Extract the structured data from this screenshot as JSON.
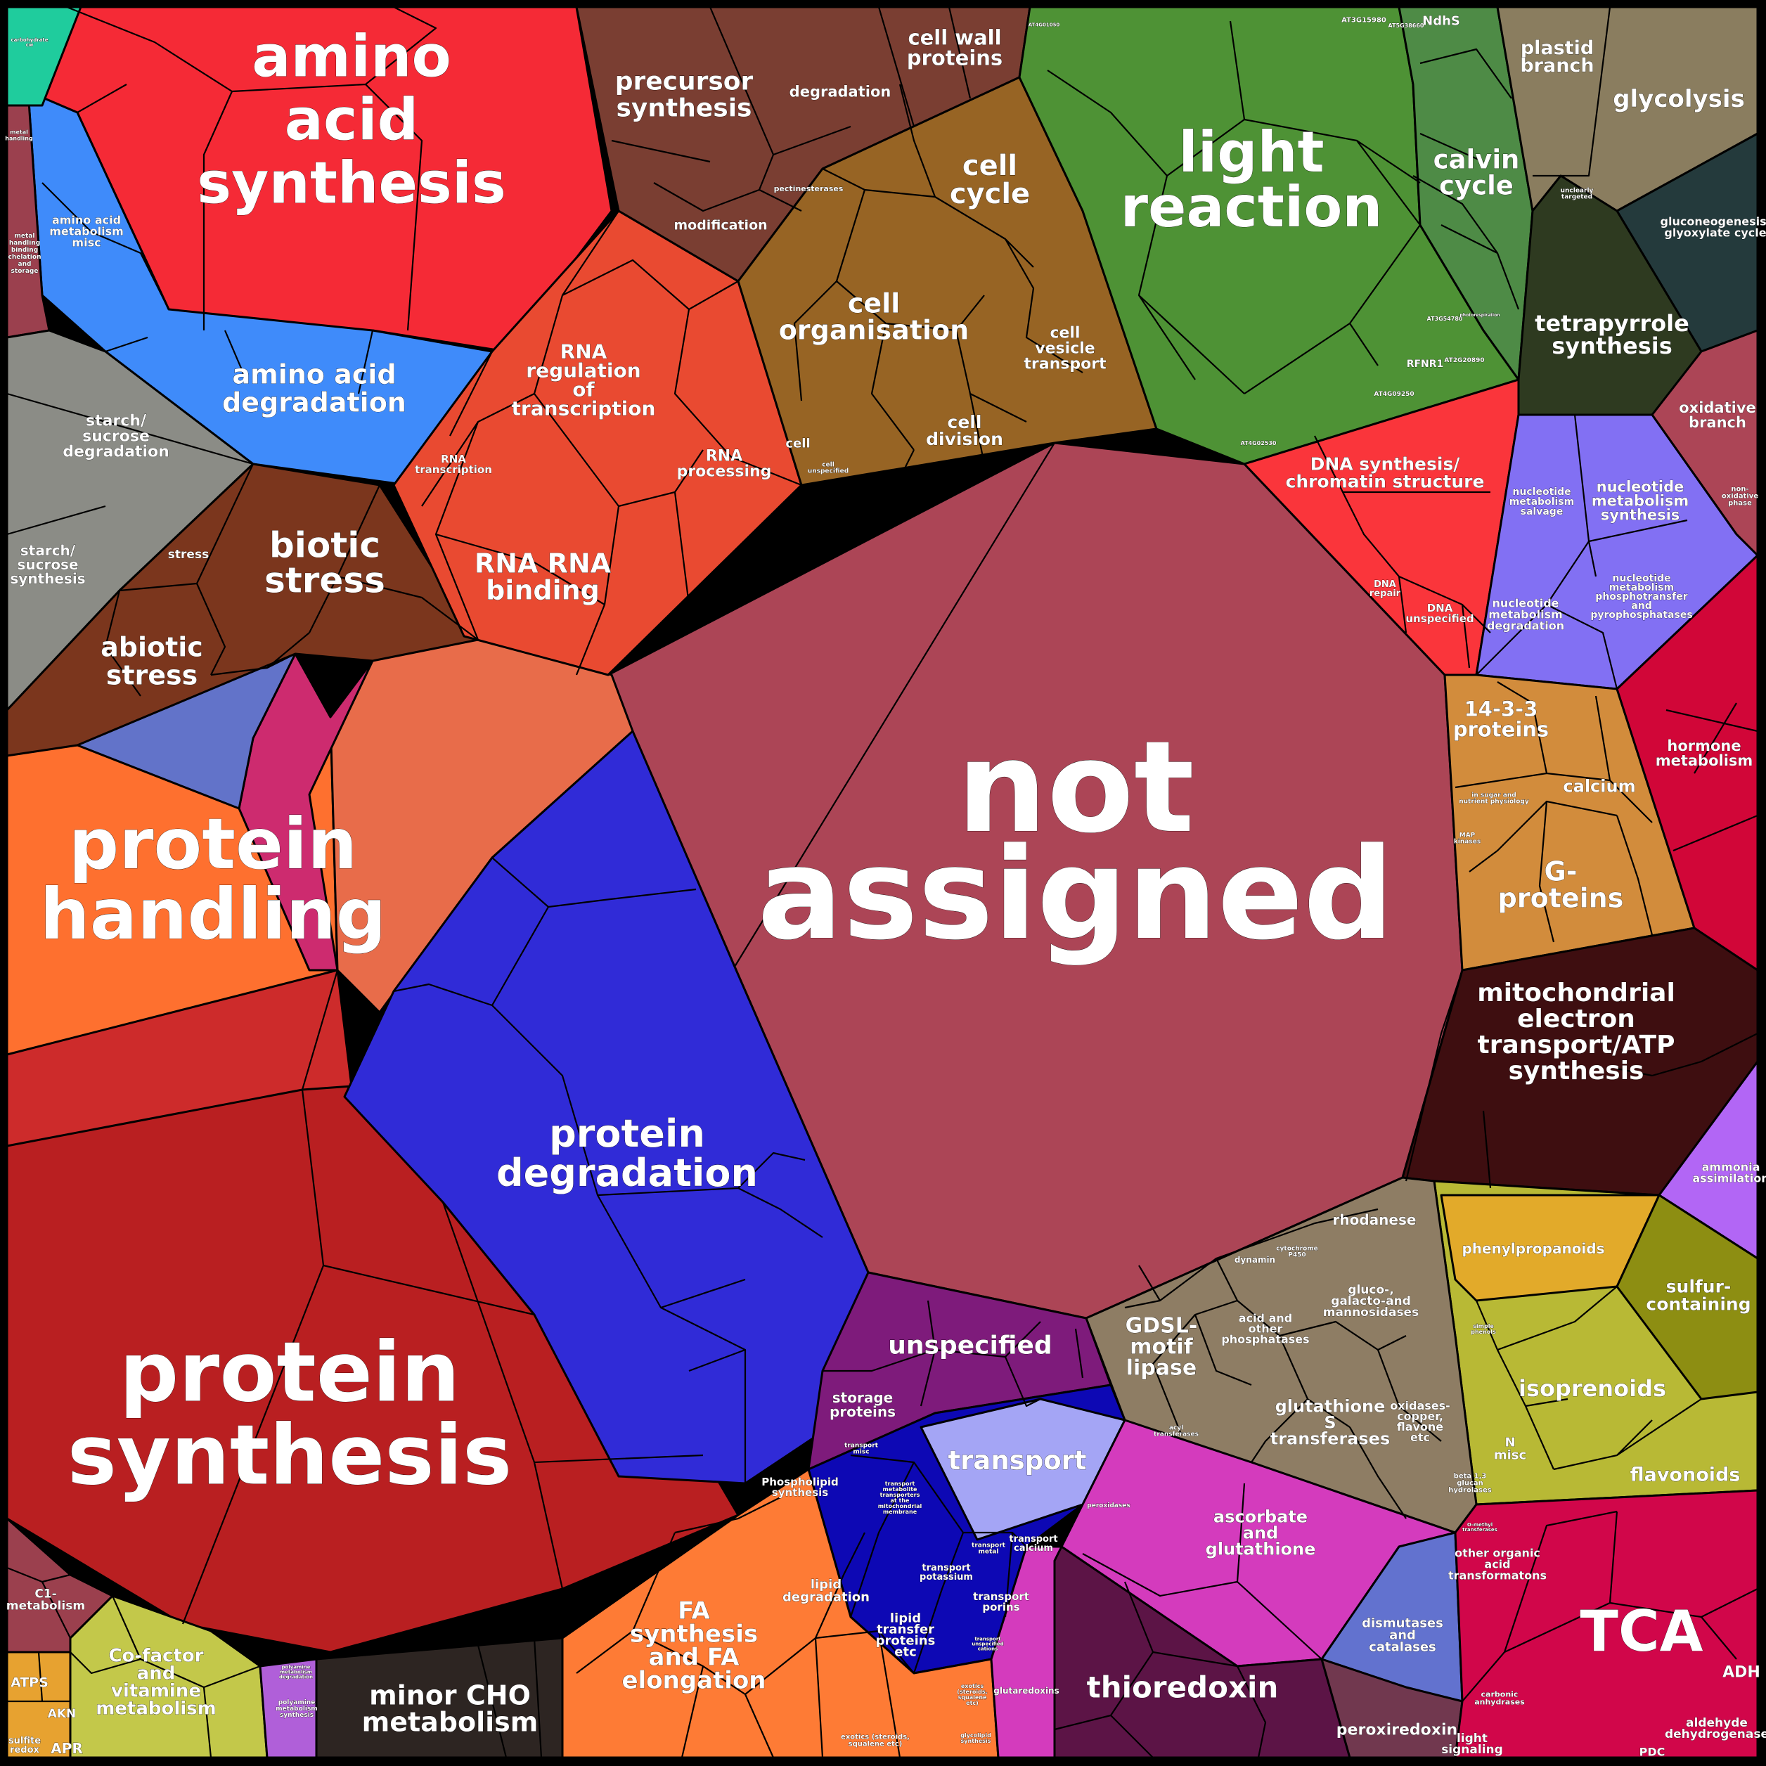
{
  "labels": {
    "not_assigned": [
      "not",
      "assigned"
    ],
    "protein_synthesis": [
      "protein",
      "synthesis"
    ],
    "protein_handling": [
      "protein",
      "handling"
    ],
    "protein_degradation": [
      "protein",
      "degradation"
    ],
    "amino_acid_synthesis": [
      "amino",
      "acid",
      "synthesis"
    ],
    "amino_acid_degradation": [
      "amino acid",
      "degradation"
    ],
    "amino_acid_metabolism_misc": [
      "amino acid",
      "metabolism",
      "misc"
    ],
    "metal_handling": [
      "metal",
      "handling",
      "binding",
      "chelation",
      "and",
      "storage"
    ],
    "metal_handling_top": [
      "metal",
      "handling"
    ],
    "starch_degradation": [
      "starch/",
      "sucrose",
      "degradation"
    ],
    "starch_synthesis": [
      "starch/",
      "sucrose",
      "synthesis"
    ],
    "biotic_stress": [
      "biotic",
      "stress"
    ],
    "stress": [
      "stress"
    ],
    "abiotic_stress": [
      "abiotic",
      "stress"
    ],
    "rna_regulation": [
      "RNA",
      "regulation",
      "of",
      "transcription"
    ],
    "rna_transcription": [
      "RNA",
      "transcription"
    ],
    "rna_processing": [
      "RNA",
      "processing"
    ],
    "rna_binding": [
      "RNA RNA",
      "binding"
    ],
    "precursor_synthesis": [
      "precursor",
      "synthesis"
    ],
    "degradation": [
      "degradation"
    ],
    "cell_wall_proteins": [
      "cell wall",
      "proteins"
    ],
    "pectinesterases": [
      "pectinesterases"
    ],
    "modification": [
      "modification"
    ],
    "cell_cycle": [
      "cell",
      "cycle"
    ],
    "cell_organisation": [
      "cell",
      "organisation"
    ],
    "cell_vesicle_transport": [
      "cell",
      "vesicle",
      "transport"
    ],
    "cell_division": [
      "cell",
      "division"
    ],
    "cell": [
      "cell"
    ],
    "cell_unspecified": [
      "cell",
      "unspecified"
    ],
    "light_reaction": [
      "light",
      "reaction"
    ],
    "calvin_cycle": [
      "calvin",
      "cycle"
    ],
    "plastid_branch": [
      "plastid",
      "branch"
    ],
    "glycolysis": [
      "glycolysis"
    ],
    "unclear_targeted": [
      "unclearly",
      "targeted"
    ],
    "gluconeogenesis": [
      "gluconeogenesis/",
      "glyoxylate cycle"
    ],
    "tetrapyrrole_synthesis": [
      "tetrapyrrole",
      "synthesis"
    ],
    "oxidative_branch": [
      "oxidative",
      "branch"
    ],
    "non_oxidative_phase": [
      "non-",
      "oxidative",
      "phase"
    ],
    "dna_synthesis": [
      "DNA synthesis/",
      "chromatin structure"
    ],
    "dna_repair": [
      "DNA",
      "repair"
    ],
    "dna_unspecified": [
      "DNA",
      "unspecified"
    ],
    "nucleotide_salvage": [
      "nucleotide",
      "metabolism",
      "salvage"
    ],
    "nucleotide_synthesis": [
      "nucleotide",
      "metabolism",
      "synthesis"
    ],
    "nucleotide_degradation": [
      "nucleotide",
      "metabolism",
      "degradation"
    ],
    "nucleotide_phosphotransfer": [
      "nucleotide",
      "metabolism",
      "phosphotransfer",
      "and",
      "pyrophosphatases"
    ],
    "proteins_1433": [
      "14-3-3",
      "proteins"
    ],
    "calcium": [
      "calcium"
    ],
    "sugar_nutrient": [
      "in sugar and",
      "nutrient physiology"
    ],
    "map_kinases": [
      "MAP",
      "kinases"
    ],
    "g_proteins": [
      "G-",
      "proteins"
    ],
    "hormone_metabolism": [
      "hormone",
      "metabolism"
    ],
    "mitochondrial_electron": [
      "mitochondrial",
      "electron",
      "transport/ATP",
      "synthesis"
    ],
    "ammonia_assimilation": [
      "ammonia",
      "assimilation"
    ],
    "phenylpropanoids": [
      "phenylpropanoids"
    ],
    "sulfur_containing": [
      "sulfur-",
      "containing"
    ],
    "isoprenoids": [
      "isoprenoids"
    ],
    "simple_phenols": [
      "simple",
      "phenols"
    ],
    "n_misc": [
      "N",
      "misc"
    ],
    "flavonoids": [
      "flavonoids"
    ],
    "rhodanese": [
      "rhodanese"
    ],
    "gluco_galacto": [
      "gluco-,",
      "galacto-and",
      "mannosidases"
    ],
    "acid_phosphatases": [
      "acid and",
      "other",
      "phosphatases"
    ],
    "dynamin": [
      "dynamin"
    ],
    "cytochrome_p450": [
      "cytochrome",
      "P450"
    ],
    "gdsl_lipase": [
      "GDSL-",
      "motif",
      "lipase"
    ],
    "glutathione_transferases": [
      "glutathione",
      "S",
      "transferases"
    ],
    "oxidases": [
      "oxidases-",
      "copper,",
      "flavone",
      "etc"
    ],
    "beta_glucan": [
      "beta 1,3",
      "glucan",
      "hydrolases"
    ],
    "o_methyl": [
      "O-methyl",
      "transferases"
    ],
    "acyl_transferases": [
      "acyl",
      "transferases"
    ],
    "peroxidases": [
      "peroxidases"
    ],
    "unspecified": [
      "unspecified"
    ],
    "storage_proteins": [
      "storage",
      "proteins"
    ],
    "transport": [
      "transport"
    ],
    "transport_misc": [
      "transport",
      "misc"
    ],
    "transport_mito": [
      "transport",
      "metabolite",
      "transporters",
      "at the",
      "mitochondrial",
      "membrane"
    ],
    "transport_metal": [
      "transport",
      "metal"
    ],
    "transport_calcium": [
      "transport",
      "calcium"
    ],
    "transport_potassium": [
      "transport",
      "potassium"
    ],
    "transport_porins": [
      "transport",
      "porins"
    ],
    "transport_unspecified_cations": [
      "transport",
      "unspecified",
      "cations"
    ],
    "phospholipid_synthesis": [
      "Phospholipid",
      "synthesis"
    ],
    "lipid_degradation": [
      "lipid",
      "degradation"
    ],
    "lipid_transfer": [
      "lipid",
      "transfer",
      "proteins",
      "etc"
    ],
    "fa_synthesis": [
      "FA",
      "synthesis",
      "and FA",
      "elongation"
    ],
    "exotics_steroids": [
      "exotics (steroids,",
      "squalene etc)"
    ],
    "exotics": [
      "exotics",
      "(steroids,",
      "squalene",
      "etc)"
    ],
    "glycolipid_synthesis": [
      "glycolipid",
      "synthesis"
    ],
    "ascorbate_glutathione": [
      "ascorbate",
      "and",
      "glutathione"
    ],
    "glutaredoxins": [
      "glutaredoxins"
    ],
    "thioredoxin": [
      "thioredoxin"
    ],
    "dismutases_catalases": [
      "dismutases",
      "and",
      "catalases"
    ],
    "peroxiredoxin": [
      "peroxiredoxin"
    ],
    "other_organic_acid": [
      "other organic",
      "acid",
      "transformatons"
    ],
    "tca": [
      "TCA"
    ],
    "adh": [
      "ADH"
    ],
    "pdc": [
      "PDC"
    ],
    "aldehyde_dehydrogenase": [
      "aldehyde",
      "dehydrogenase"
    ],
    "carbonic_anhydrases": [
      "carbonic",
      "anhydrases"
    ],
    "light_signaling": [
      "light",
      "signaling"
    ],
    "minor_cho": [
      "minor CHO",
      "metabolism"
    ],
    "cofactor": [
      "Co-factor",
      "and",
      "vitamine",
      "metabolism"
    ],
    "polyamine_degradation": [
      "polyamine",
      "metabolism",
      "degradation"
    ],
    "polyamine_synthesis": [
      "polyamine",
      "metabolism",
      "synthesis"
    ],
    "c1_metabolism": [
      "C1-",
      "metabolism"
    ],
    "atps": [
      "ATPS"
    ],
    "akn": [
      "AKN"
    ],
    "apr": [
      "APR"
    ],
    "sulfite_redox": [
      "sulfite",
      "redox"
    ],
    "ndhs": [
      "NdhS"
    ],
    "at3g15980": [
      "AT3G15980"
    ],
    "at5g38660": [
      "AT5G38660"
    ],
    "at4g01050": [
      "AT4G01050"
    ],
    "at3g54780": [
      "AT3G54780"
    ],
    "at2g20890": [
      "AT2G20890"
    ],
    "at4g09250": [
      "AT4G09250"
    ],
    "at4g02530": [
      "AT4G02530"
    ],
    "rfnr1": [
      "RFNR1"
    ],
    "photorespiration": [
      "photorespiration"
    ],
    "carbohydrate_tiny": [
      "carbohydrate",
      "cw"
    ],
    "gsh_tiny": [
      "glutathione",
      "conjugating",
      "enzymes"
    ],
    "misc_tiny": [
      "misc",
      "dummy"
    ]
  },
  "colors": {
    "not_assigned": "#ac4556",
    "protein_synthesis": "#b91f21",
    "protein_handling": "#fe702f",
    "protein_degradation": "#302bd7",
    "amino_acid_synthesis": "#f52a36",
    "amino_acid_degradation": "#3f8bfa",
    "starch": "#8b8c86",
    "stress": "#7b361d",
    "rna": "#e94a31",
    "cell_wall": "#7a3e32",
    "cell": "#976424",
    "light_reaction": "#4e9235",
    "calvin_cycle": "#4e8b46",
    "glycolysis": "#8a7d5f",
    "tetrapyrrole": "#2e3a20",
    "gluconeogenesis": "#243a3c",
    "oxidative_pp": "#ac4556",
    "dna": "#fa353b",
    "nucleotide": "#8270f3",
    "signalling": "#d28c3c",
    "hormone": "#d10638",
    "mitochondrial": "#3e0e10",
    "ammonia": "#b266f5",
    "secondary_metabolism": "#b8b935",
    "phenylpropanoids": "#e2aa2a",
    "sulfur": "#8d8e12",
    "misc": "#8e7d64",
    "unspecified": "#7e1b7b",
    "transport": "#a4a5f5",
    "transport_dark": "#0d08b4",
    "lipid": "#fe7b35",
    "redox_ascorbate": "#d43bbd",
    "thioredoxin": "#5c1446",
    "dismutases": "#6272cf",
    "peroxiredoxin": "#71384f",
    "tca": "#d1064a",
    "minor_cho": "#2d2522",
    "cofactor": "#c3c84a",
    "polyamine": "#b05fd9",
    "c1": "#9b404e",
    "sulfur_assim": "#e7a230",
    "teal": "#1fcc9d"
  }
}
